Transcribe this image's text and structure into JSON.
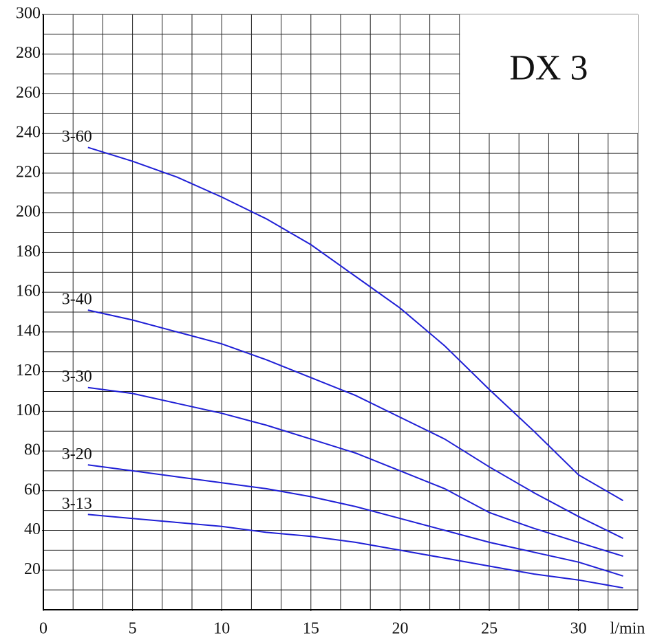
{
  "chart_data": {
    "type": "line",
    "title": "DX 3",
    "x_label": "l/min",
    "x": [
      2.5,
      5,
      7.5,
      10,
      12.5,
      15,
      17.5,
      20,
      22.5,
      25,
      27.5,
      30,
      32.5
    ],
    "series": [
      {
        "name": "3-60",
        "color": "#1f1fd6",
        "values": [
          233,
          226,
          218,
          208,
          197,
          184,
          168,
          152,
          133,
          111,
          90,
          68,
          55
        ]
      },
      {
        "name": "3-40",
        "color": "#1f1fd6",
        "values": [
          151,
          146,
          140,
          134,
          126,
          117,
          108,
          97,
          86,
          72,
          59,
          47,
          36
        ]
      },
      {
        "name": "3-30",
        "color": "#1f1fd6",
        "values": [
          112,
          109,
          104,
          99,
          93,
          86,
          79,
          70,
          61,
          49,
          41,
          34,
          27
        ]
      },
      {
        "name": "3-20",
        "color": "#1f1fd6",
        "values": [
          73,
          70,
          67,
          64,
          61,
          57,
          52,
          46,
          40,
          34,
          29,
          24,
          17
        ]
      },
      {
        "name": "3-13",
        "color": "#1f1fd6",
        "values": [
          48,
          46,
          44,
          42,
          39,
          37,
          34,
          30,
          26,
          22,
          18,
          15,
          11
        ]
      }
    ],
    "xlim": [
      0,
      33.33
    ],
    "xticks": [
      0,
      5,
      10,
      15,
      20,
      25,
      30
    ],
    "ylim": [
      0,
      300
    ],
    "yticks": [
      20,
      40,
      60,
      80,
      100,
      120,
      140,
      160,
      180,
      200,
      220,
      240,
      260,
      280,
      300
    ],
    "grid": true
  }
}
